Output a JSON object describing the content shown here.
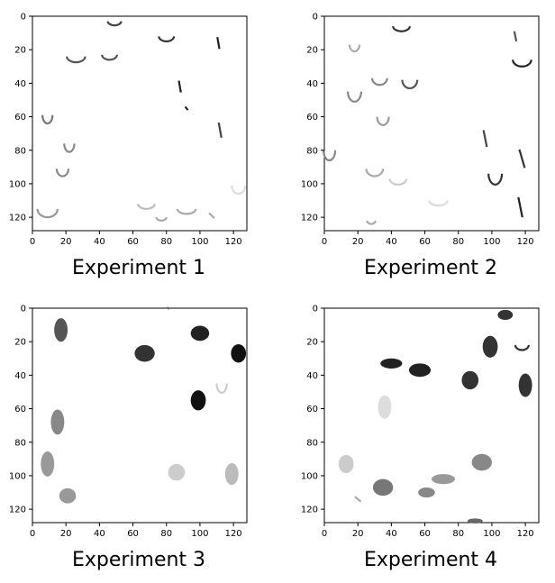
{
  "figure": {
    "panels": [
      {
        "caption": "Experiment 1",
        "image_extent": [
          0,
          128
        ],
        "x_ticks": [
          0,
          20,
          40,
          60,
          80,
          100,
          120
        ],
        "y_ticks": [
          0,
          20,
          40,
          60,
          80,
          100,
          120
        ],
        "blobs": [
          {
            "x": 49,
            "y": 3,
            "w": 8,
            "h": 5,
            "shade": "#444444",
            "style": "arc"
          },
          {
            "x": 80,
            "y": 12,
            "w": 9,
            "h": 6,
            "shade": "#333333",
            "style": "arc"
          },
          {
            "x": 111,
            "y": 16,
            "w": 3,
            "h": 7,
            "shade": "#222222",
            "style": "stroke"
          },
          {
            "x": 26,
            "y": 24,
            "w": 11,
            "h": 7,
            "shade": "#555555",
            "style": "arc"
          },
          {
            "x": 46,
            "y": 23,
            "w": 9,
            "h": 6,
            "shade": "#555555",
            "style": "arc"
          },
          {
            "x": 88,
            "y": 42,
            "w": 3,
            "h": 7,
            "shade": "#222222",
            "style": "stroke"
          },
          {
            "x": 92,
            "y": 55,
            "w": 4,
            "h": 2,
            "shade": "#222222",
            "style": "stroke"
          },
          {
            "x": 9,
            "y": 59,
            "w": 6,
            "h": 10,
            "shade": "#777777",
            "style": "arc"
          },
          {
            "x": 112,
            "y": 68,
            "w": 4,
            "h": 9,
            "shade": "#444444",
            "style": "stroke"
          },
          {
            "x": 22,
            "y": 76,
            "w": 6,
            "h": 10,
            "shade": "#888888",
            "style": "arc"
          },
          {
            "x": 18,
            "y": 91,
            "w": 7,
            "h": 9,
            "shade": "#888888",
            "style": "arc"
          },
          {
            "x": 123,
            "y": 101,
            "w": 8,
            "h": 10,
            "shade": "#dddddd",
            "style": "arc"
          },
          {
            "x": 9,
            "y": 115,
            "w": 12,
            "h": 10,
            "shade": "#999999",
            "style": "arc"
          },
          {
            "x": 68,
            "y": 112,
            "w": 10,
            "h": 6,
            "shade": "#bbbbbb",
            "style": "arc"
          },
          {
            "x": 92,
            "y": 115,
            "w": 11,
            "h": 6,
            "shade": "#aaaaaa",
            "style": "arc"
          },
          {
            "x": 77,
            "y": 120,
            "w": 6,
            "h": 4,
            "shade": "#aaaaaa",
            "style": "arc"
          },
          {
            "x": 107,
            "y": 119,
            "w": 8,
            "h": 3,
            "shade": "#aaaaaa",
            "style": "stroke"
          }
        ]
      },
      {
        "caption": "Experiment 2",
        "image_extent": [
          0,
          128
        ],
        "x_ticks": [
          0,
          20,
          40,
          60,
          80,
          100,
          120
        ],
        "y_ticks": [
          0,
          20,
          40,
          60,
          80,
          100,
          120
        ],
        "blobs": [
          {
            "x": 46,
            "y": 6,
            "w": 10,
            "h": 6,
            "shade": "#333333",
            "style": "arc"
          },
          {
            "x": 114,
            "y": 12,
            "w": 3,
            "h": 6,
            "shade": "#555555",
            "style": "stroke"
          },
          {
            "x": 18,
            "y": 17,
            "w": 6,
            "h": 8,
            "shade": "#aaaaaa",
            "style": "arc"
          },
          {
            "x": 118,
            "y": 26,
            "w": 11,
            "h": 8,
            "shade": "#222222",
            "style": "arc"
          },
          {
            "x": 51,
            "y": 38,
            "w": 9,
            "h": 10,
            "shade": "#555555",
            "style": "arc"
          },
          {
            "x": 33,
            "y": 37,
            "w": 9,
            "h": 8,
            "shade": "#888888",
            "style": "arc"
          },
          {
            "x": 18,
            "y": 45,
            "w": 8,
            "h": 12,
            "shade": "#888888",
            "style": "arc"
          },
          {
            "x": 35,
            "y": 60,
            "w": 7,
            "h": 10,
            "shade": "#999999",
            "style": "arc"
          },
          {
            "x": 96,
            "y": 73,
            "w": 5,
            "h": 10,
            "shade": "#444444",
            "style": "stroke"
          },
          {
            "x": 3,
            "y": 80,
            "w": 7,
            "h": 12,
            "shade": "#888888",
            "style": "arc"
          },
          {
            "x": 118,
            "y": 85,
            "w": 8,
            "h": 11,
            "shade": "#333333",
            "style": "stroke"
          },
          {
            "x": 102,
            "y": 94,
            "w": 8,
            "h": 13,
            "shade": "#333333",
            "style": "arc"
          },
          {
            "x": 30,
            "y": 91,
            "w": 10,
            "h": 9,
            "shade": "#aaaaaa",
            "style": "arc"
          },
          {
            "x": 44,
            "y": 97,
            "w": 10,
            "h": 7,
            "shade": "#cccccc",
            "style": "arc"
          },
          {
            "x": 68,
            "y": 110,
            "w": 11,
            "h": 6,
            "shade": "#dddddd",
            "style": "arc"
          },
          {
            "x": 117,
            "y": 114,
            "w": 6,
            "h": 12,
            "shade": "#222222",
            "style": "stroke"
          },
          {
            "x": 28,
            "y": 122,
            "w": 5,
            "h": 4,
            "shade": "#aaaaaa",
            "style": "arc"
          }
        ]
      },
      {
        "caption": "Experiment 3",
        "image_extent": [
          0,
          128
        ],
        "x_ticks": [
          0,
          20,
          40,
          60,
          80,
          100,
          120
        ],
        "y_ticks": [
          0,
          20,
          40,
          60,
          80,
          100,
          120
        ],
        "blobs": [
          {
            "x": 81,
            "y": 0,
            "w": 3,
            "h": 1,
            "shade": "#555555",
            "style": "stroke"
          },
          {
            "x": 17,
            "y": 13,
            "w": 8,
            "h": 14,
            "shade": "#555555",
            "style": "fill"
          },
          {
            "x": 100,
            "y": 15,
            "w": 11,
            "h": 9,
            "shade": "#222222",
            "style": "fill"
          },
          {
            "x": 67,
            "y": 27,
            "w": 12,
            "h": 10,
            "shade": "#333333",
            "style": "fill"
          },
          {
            "x": 123,
            "y": 27,
            "w": 9,
            "h": 11,
            "shade": "#111111",
            "style": "fill"
          },
          {
            "x": 113,
            "y": 45,
            "w": 6,
            "h": 11,
            "shade": "#cccccc",
            "style": "arc"
          },
          {
            "x": 99,
            "y": 55,
            "w": 9,
            "h": 12,
            "shade": "#111111",
            "style": "fill"
          },
          {
            "x": 15,
            "y": 68,
            "w": 8,
            "h": 15,
            "shade": "#888888",
            "style": "fill"
          },
          {
            "x": 9,
            "y": 93,
            "w": 8,
            "h": 15,
            "shade": "#999999",
            "style": "fill"
          },
          {
            "x": 86,
            "y": 98,
            "w": 10,
            "h": 10,
            "shade": "#cccccc",
            "style": "fill"
          },
          {
            "x": 119,
            "y": 99,
            "w": 8,
            "h": 13,
            "shade": "#bbbbbb",
            "style": "fill"
          },
          {
            "x": 21,
            "y": 112,
            "w": 10,
            "h": 9,
            "shade": "#999999",
            "style": "fill"
          }
        ]
      },
      {
        "caption": "Experiment 4",
        "image_extent": [
          0,
          128
        ],
        "x_ticks": [
          0,
          20,
          40,
          60,
          80,
          100,
          120
        ],
        "y_ticks": [
          0,
          20,
          40,
          60,
          80,
          100,
          120
        ],
        "blobs": [
          {
            "x": 108,
            "y": 4,
            "w": 9,
            "h": 6,
            "shade": "#333333",
            "style": "fill"
          },
          {
            "x": 99,
            "y": 23,
            "w": 9,
            "h": 13,
            "shade": "#333333",
            "style": "fill"
          },
          {
            "x": 118,
            "y": 22,
            "w": 8,
            "h": 6,
            "shade": "#333333",
            "style": "arc"
          },
          {
            "x": 40,
            "y": 33,
            "w": 13,
            "h": 6,
            "shade": "#222222",
            "style": "fill"
          },
          {
            "x": 57,
            "y": 37,
            "w": 13,
            "h": 8,
            "shade": "#222222",
            "style": "fill"
          },
          {
            "x": 87,
            "y": 43,
            "w": 10,
            "h": 11,
            "shade": "#333333",
            "style": "fill"
          },
          {
            "x": 120,
            "y": 46,
            "w": 8,
            "h": 14,
            "shade": "#333333",
            "style": "fill"
          },
          {
            "x": 36,
            "y": 59,
            "w": 8,
            "h": 14,
            "shade": "#dddddd",
            "style": "fill"
          },
          {
            "x": 13,
            "y": 93,
            "w": 9,
            "h": 11,
            "shade": "#cccccc",
            "style": "fill"
          },
          {
            "x": 94,
            "y": 92,
            "w": 12,
            "h": 10,
            "shade": "#888888",
            "style": "fill"
          },
          {
            "x": 35,
            "y": 107,
            "w": 12,
            "h": 10,
            "shade": "#777777",
            "style": "fill"
          },
          {
            "x": 71,
            "y": 102,
            "w": 14,
            "h": 6,
            "shade": "#999999",
            "style": "fill"
          },
          {
            "x": 61,
            "y": 110,
            "w": 10,
            "h": 6,
            "shade": "#888888",
            "style": "fill"
          },
          {
            "x": 20,
            "y": 114,
            "w": 9,
            "h": 3,
            "shade": "#aaaaaa",
            "style": "stroke"
          },
          {
            "x": 90,
            "y": 127,
            "w": 9,
            "h": 3,
            "shade": "#666666",
            "style": "fill"
          }
        ]
      }
    ]
  }
}
